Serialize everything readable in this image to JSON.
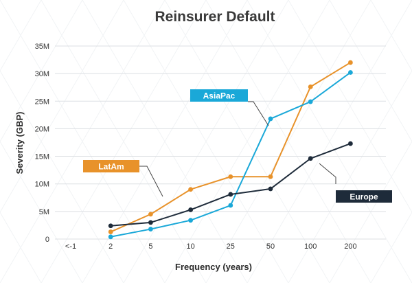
{
  "chart_data": {
    "type": "line",
    "title": "Reinsurer Default",
    "xlabel": "Frequency (years)",
    "ylabel": "Severity (GBP)",
    "categories": [
      "<-1",
      "2",
      "5",
      "10",
      "25",
      "50",
      "100",
      "200"
    ],
    "ylim": [
      0,
      35
    ],
    "yticks": [
      "0",
      "5M",
      "10M",
      "15M",
      "20M",
      "25M",
      "30M",
      "35M"
    ],
    "grid": true,
    "series": [
      {
        "name": "LatAm",
        "color": "#e8922a",
        "values": [
          null,
          1.3,
          4.5,
          9.0,
          11.3,
          11.3,
          27.6,
          32.0
        ]
      },
      {
        "name": "AsiaPac",
        "color": "#1aa8d8",
        "values": [
          null,
          0.4,
          1.8,
          3.4,
          6.1,
          21.8,
          24.9,
          30.2
        ]
      },
      {
        "name": "Europe",
        "color": "#1e2b3a",
        "values": [
          null,
          2.4,
          3.0,
          5.3,
          8.1,
          9.1,
          14.6,
          17.3
        ]
      }
    ]
  }
}
